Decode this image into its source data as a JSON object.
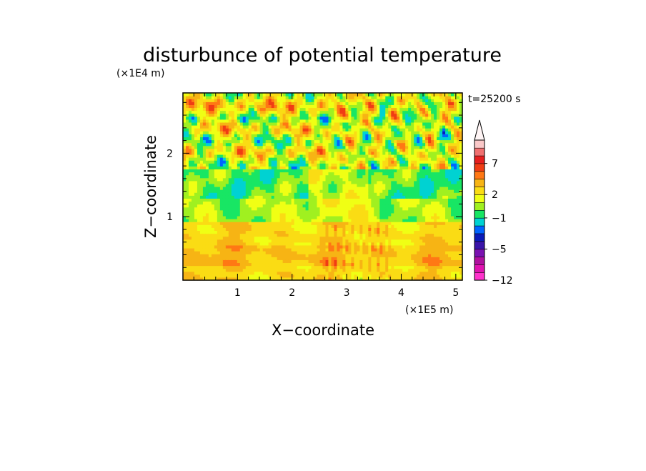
{
  "chart_data": {
    "type": "heatmap",
    "title": "disturbunce of potential temperature",
    "xlabel": "X−coordinate",
    "ylabel": "Z−coordinate",
    "x_unit": "(×1E5 m)",
    "y_unit": "(×1E4 m)",
    "time_label": "t=25200 s",
    "xlim": [
      0,
      5.12
    ],
    "ylim": [
      0,
      2.95
    ],
    "x_ticks": [
      1,
      2,
      3,
      4,
      5
    ],
    "x_tick_labels": [
      "1",
      "2",
      "3",
      "4",
      "5"
    ],
    "y_ticks": [
      1,
      2
    ],
    "y_tick_labels": [
      "1",
      "2"
    ],
    "colorbar": {
      "levels": [
        -12,
        -10,
        -8,
        -6,
        -5,
        -4,
        -3,
        -2,
        -1,
        0,
        1,
        2,
        3,
        4,
        5,
        7,
        9,
        11
      ],
      "labeled_ticks": [
        -12,
        -5,
        -1,
        2,
        7
      ],
      "labeled_tick_text": [
        "−12",
        "−5",
        "−1",
        "2",
        "7"
      ],
      "colors": [
        "#ff33cc",
        "#e012b0",
        "#b0109e",
        "#7a12b0",
        "#3a14a8",
        "#0a1ab8",
        "#0064ff",
        "#00d2d2",
        "#18e664",
        "#a0f020",
        "#f0ff14",
        "#fadc14",
        "#f7b414",
        "#ff7814",
        "#f03c14",
        "#e61e1e",
        "#f07070",
        "#fac8c8"
      ],
      "extend_top": true
    },
    "description_regions": [
      {
        "z_range": [
          0,
          0.9
        ],
        "value": 2.5
      },
      {
        "z_range": [
          0.9,
          1.3
        ],
        "value": 0.5
      },
      {
        "z_range": [
          1.3,
          1.7
        ],
        "value": -0.5
      },
      {
        "z_range": [
          1.7,
          2.95
        ],
        "value": 1.5
      }
    ]
  }
}
